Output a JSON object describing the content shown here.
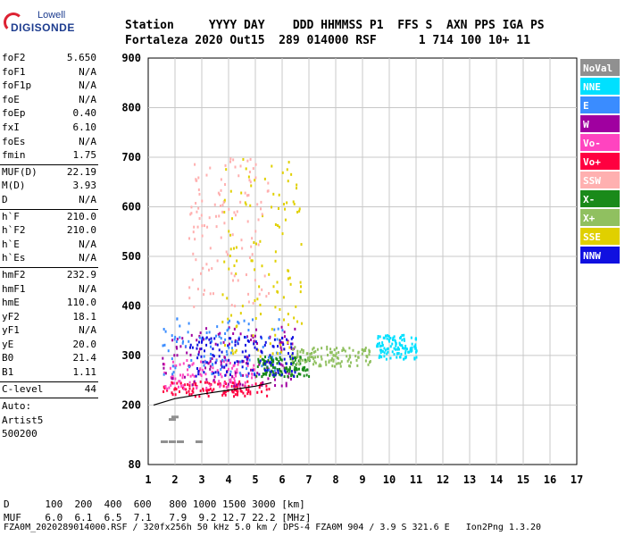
{
  "logo": {
    "line1": "Lowell",
    "line2": "DIGISONDE"
  },
  "header": {
    "labels": "Station     YYYY DAY    DDD HHMMSS P1  FFS S  AXN PPS IGA PS",
    "values": "Fortaleza 2020 Out15  289 014000 RSF      1 714 100 10+ 11"
  },
  "params": [
    [
      {
        "name": "foF2",
        "value": "5.650"
      },
      {
        "name": "foF1",
        "value": "N/A"
      },
      {
        "name": "foF1p",
        "value": "N/A"
      },
      {
        "name": "foE",
        "value": "N/A"
      },
      {
        "name": "foEp",
        "value": "0.40"
      },
      {
        "name": "fxI",
        "value": "6.10"
      },
      {
        "name": "foEs",
        "value": "N/A"
      },
      {
        "name": "fmin",
        "value": "1.75"
      }
    ],
    [
      {
        "name": "MUF(D)",
        "value": "22.19"
      },
      {
        "name": "M(D)",
        "value": "3.93"
      },
      {
        "name": "D",
        "value": "N/A"
      }
    ],
    [
      {
        "name": "h`F",
        "value": "210.0"
      },
      {
        "name": "h`F2",
        "value": "210.0"
      },
      {
        "name": "h`E",
        "value": "N/A"
      },
      {
        "name": "h`Es",
        "value": "N/A"
      }
    ],
    [
      {
        "name": "hmF2",
        "value": "232.9"
      },
      {
        "name": "hmF1",
        "value": "N/A"
      },
      {
        "name": "hmE",
        "value": "110.0"
      },
      {
        "name": "yF2",
        "value": "18.1"
      },
      {
        "name": "yF1",
        "value": "N/A"
      },
      {
        "name": "yE",
        "value": "20.0"
      },
      {
        "name": "B0",
        "value": "21.4"
      },
      {
        "name": "B1",
        "value": "1.11"
      }
    ],
    [
      {
        "name": "C-level",
        "value": "44"
      }
    ]
  ],
  "auto": [
    "Auto:",
    "Artist5",
    "500200"
  ],
  "legend": [
    {
      "label": "NoVal",
      "color": "#909090"
    },
    {
      "label": "NNE",
      "color": "#00e0ff"
    },
    {
      "label": "E",
      "color": "#3a8cff"
    },
    {
      "label": "W",
      "color": "#a000a0"
    },
    {
      "label": "Vo-",
      "color": "#ff44c0"
    },
    {
      "label": "Vo+",
      "color": "#ff0040"
    },
    {
      "label": "SSW",
      "color": "#ffb0b0"
    },
    {
      "label": "X-",
      "color": "#1a8a1a"
    },
    {
      "label": "X+",
      "color": "#90c060"
    },
    {
      "label": "SSE",
      "color": "#e0d000"
    },
    {
      "label": "NNW",
      "color": "#1010e0"
    }
  ],
  "footer": {
    "d_row": "D      100  200  400  600   800 1000 1500 3000 [km]",
    "muf_row": "MUF    6.0  6.1  6.5  7.1   7.9  9.2 12.7 22.2 [MHz]",
    "file_row": "FZA0M_2020289014000.RSF / 320fx256h 50 kHz 5.0 km / DPS-4 FZA0M 904 / 3.9 S 321.6 E   Ion2Png 1.3.20"
  },
  "chart_data": {
    "type": "scatter",
    "title": "",
    "xlabel": "",
    "ylabel": "",
    "xlim": [
      1,
      17
    ],
    "ylim": [
      80,
      900
    ],
    "xticks": [
      1,
      2,
      3,
      4,
      5,
      6,
      7,
      8,
      9,
      10,
      11,
      12,
      13,
      14,
      15,
      16,
      17
    ],
    "yticks": [
      80,
      200,
      300,
      400,
      500,
      600,
      700,
      800,
      900
    ],
    "grid": true,
    "trace": {
      "x": [
        1.2,
        2.0,
        3.0,
        4.0,
        5.0,
        5.6
      ],
      "y": [
        200,
        213,
        222,
        230,
        238,
        245
      ]
    },
    "clusters": [
      {
        "direction": "NoVal",
        "points": [
          [
            1.6,
            125
          ],
          [
            1.9,
            125
          ],
          [
            2.2,
            125
          ],
          [
            2.9,
            125
          ],
          [
            1.9,
            170
          ],
          [
            2.0,
            175
          ]
        ]
      },
      {
        "direction": "Vo+",
        "center": [
          3.5,
          235
        ],
        "spread": [
          2.0,
          15
        ]
      },
      {
        "direction": "Vo-",
        "center": [
          3.0,
          265
        ],
        "spread": [
          2.0,
          30
        ]
      },
      {
        "direction": "W",
        "center": [
          4.0,
          300
        ],
        "spread": [
          2.5,
          60
        ]
      },
      {
        "direction": "E",
        "center": [
          3.5,
          320
        ],
        "spread": [
          2.5,
          60
        ]
      },
      {
        "direction": "NNE",
        "center": [
          10.3,
          320
        ],
        "spread": [
          0.8,
          25
        ]
      },
      {
        "direction": "SSE",
        "center": [
          5.2,
          500
        ],
        "spread": [
          1.5,
          200
        ]
      },
      {
        "direction": "X-",
        "center": [
          6.0,
          280
        ],
        "spread": [
          1.0,
          20
        ]
      },
      {
        "direction": "X+",
        "center": [
          7.8,
          300
        ],
        "spread": [
          1.5,
          20
        ]
      },
      {
        "direction": "SSW",
        "center": [
          4.0,
          550
        ],
        "spread": [
          1.5,
          150
        ]
      },
      {
        "direction": "NNW",
        "center": [
          4.5,
          300
        ],
        "spread": [
          2.0,
          40
        ]
      }
    ]
  }
}
